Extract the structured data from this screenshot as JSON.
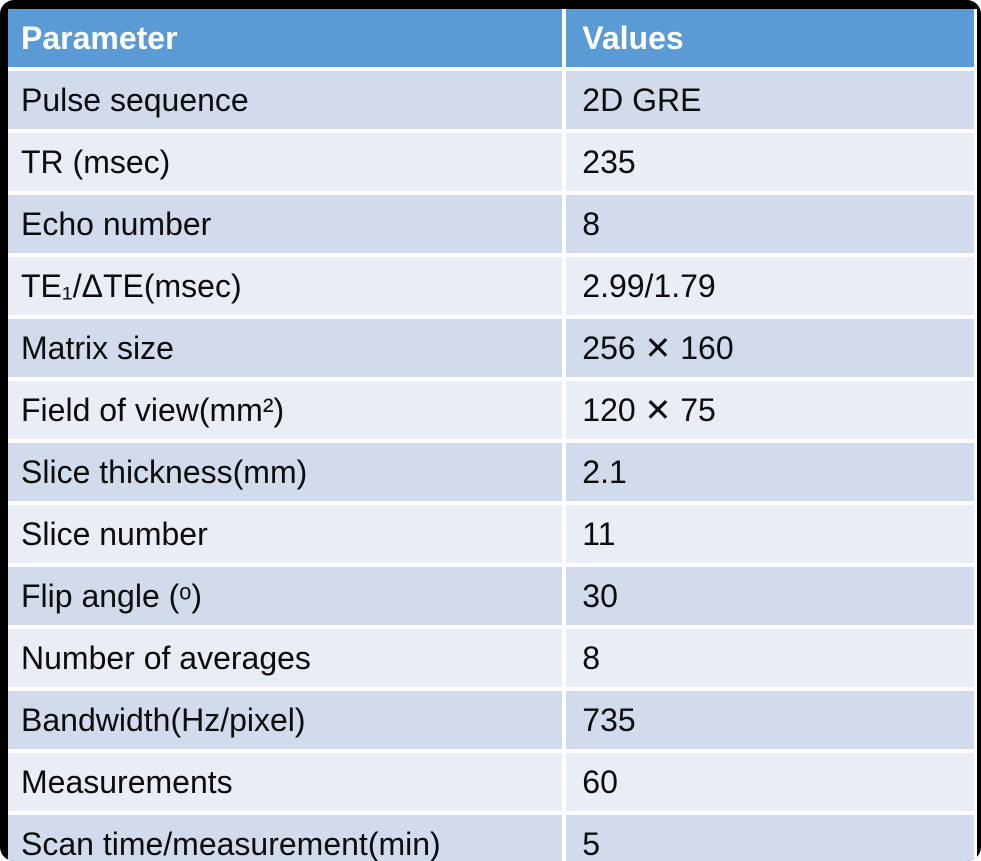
{
  "chart_data": {
    "type": "table",
    "columns": [
      "Parameter",
      "Values"
    ],
    "rows": [
      {
        "parameter": "Pulse sequence",
        "value": "2D GRE"
      },
      {
        "parameter": "TR (msec)",
        "value": "235"
      },
      {
        "parameter": "Echo number",
        "value": "8"
      },
      {
        "parameter": "TE₁/ΔTE(msec)",
        "value": "2.99/1.79"
      },
      {
        "parameter": "Matrix size",
        "value": "256 ✕ 160"
      },
      {
        "parameter": "Field of view(mm²)",
        "value": "120 ✕ 75"
      },
      {
        "parameter": "Slice thickness(mm)",
        "value": "2.1"
      },
      {
        "parameter": "Slice number",
        "value": "11"
      },
      {
        "parameter": "Flip angle (ᵒ)",
        "value": "30"
      },
      {
        "parameter": "Number of averages",
        "value": "8"
      },
      {
        "parameter": "Bandwidth(Hz/pixel)",
        "value": "735"
      },
      {
        "parameter": "Measurements",
        "value": "60"
      },
      {
        "parameter": "Scan time/measurement(min)",
        "value": "5"
      }
    ],
    "layout_hints": {
      "header_position": "top",
      "banded_rows": true,
      "grid": "white-separators"
    }
  },
  "colors": {
    "header_bg": "#5B9BD5",
    "header_text": "#FFFFFF",
    "row_band_dark": "#D1DBEC",
    "row_band_light": "#E9EDF6",
    "separator": "#FFFFFF",
    "outer_frame": "#000000",
    "body_text": "#0C0C0C"
  }
}
